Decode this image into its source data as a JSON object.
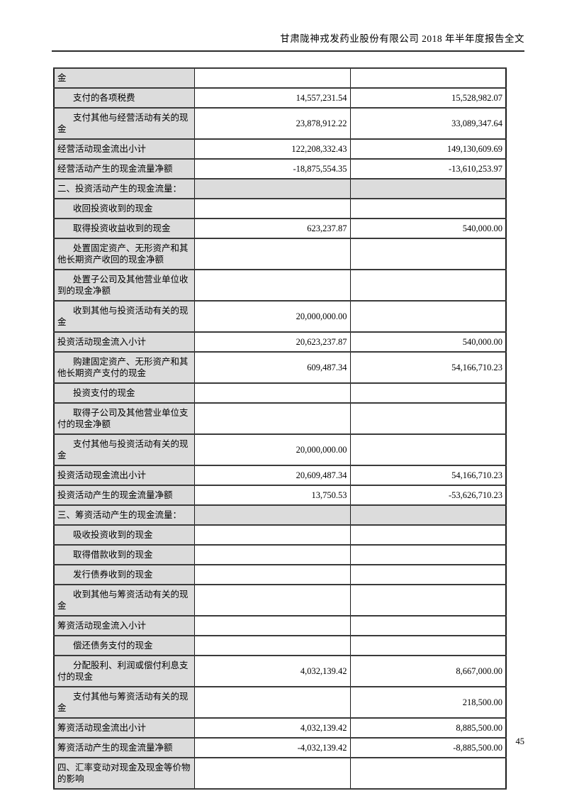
{
  "header": {
    "title": "甘肃陇神戎发药业股份有限公司 2018 年半年度报告全文"
  },
  "footer": {
    "page_number": "45"
  },
  "colors": {
    "cell_shading": "#dcdcdc",
    "border_dark": "#1c1c1c"
  },
  "table": {
    "rows": [
      {
        "label": "金",
        "indent": false,
        "section": false,
        "current": "",
        "prior": ""
      },
      {
        "label": "支付的各项税费",
        "indent": true,
        "section": false,
        "current": "14,557,231.54",
        "prior": "15,528,982.07"
      },
      {
        "label": "支付其他与经营活动有关的现金",
        "indent": true,
        "section": false,
        "current": "23,878,912.22",
        "prior": "33,089,347.64"
      },
      {
        "label": "经营活动现金流出小计",
        "indent": false,
        "section": false,
        "current": "122,208,332.43",
        "prior": "149,130,609.69"
      },
      {
        "label": "经营活动产生的现金流量净额",
        "indent": false,
        "section": false,
        "current": "-18,875,554.35",
        "prior": "-13,610,253.97"
      },
      {
        "label": "二、投资活动产生的现金流量：",
        "indent": false,
        "section": true,
        "current": "",
        "prior": ""
      },
      {
        "label": "收回投资收到的现金",
        "indent": true,
        "section": false,
        "current": "",
        "prior": ""
      },
      {
        "label": "取得投资收益收到的现金",
        "indent": true,
        "section": false,
        "current": "623,237.87",
        "prior": "540,000.00"
      },
      {
        "label": "处置固定资产、无形资产和其他长期资产收回的现金净额",
        "indent": true,
        "section": false,
        "current": "",
        "prior": ""
      },
      {
        "label": "处置子公司及其他营业单位收到的现金净额",
        "indent": true,
        "section": false,
        "current": "",
        "prior": ""
      },
      {
        "label": "收到其他与投资活动有关的现金",
        "indent": true,
        "section": false,
        "current": "20,000,000.00",
        "prior": ""
      },
      {
        "label": "投资活动现金流入小计",
        "indent": false,
        "section": false,
        "current": "20,623,237.87",
        "prior": "540,000.00"
      },
      {
        "label": "购建固定资产、无形资产和其他长期资产支付的现金",
        "indent": true,
        "section": false,
        "current": "609,487.34",
        "prior": "54,166,710.23"
      },
      {
        "label": "投资支付的现金",
        "indent": true,
        "section": false,
        "current": "",
        "prior": ""
      },
      {
        "label": "取得子公司及其他营业单位支付的现金净额",
        "indent": true,
        "section": false,
        "current": "",
        "prior": ""
      },
      {
        "label": "支付其他与投资活动有关的现金",
        "indent": true,
        "section": false,
        "current": "20,000,000.00",
        "prior": ""
      },
      {
        "label": "投资活动现金流出小计",
        "indent": false,
        "section": false,
        "current": "20,609,487.34",
        "prior": "54,166,710.23"
      },
      {
        "label": "投资活动产生的现金流量净额",
        "indent": false,
        "section": false,
        "current": "13,750.53",
        "prior": "-53,626,710.23"
      },
      {
        "label": "三、筹资活动产生的现金流量：",
        "indent": false,
        "section": true,
        "current": "",
        "prior": ""
      },
      {
        "label": "吸收投资收到的现金",
        "indent": true,
        "section": false,
        "current": "",
        "prior": ""
      },
      {
        "label": "取得借款收到的现金",
        "indent": true,
        "section": false,
        "current": "",
        "prior": ""
      },
      {
        "label": "发行债券收到的现金",
        "indent": true,
        "section": false,
        "current": "",
        "prior": ""
      },
      {
        "label": "收到其他与筹资活动有关的现金",
        "indent": true,
        "section": false,
        "current": "",
        "prior": ""
      },
      {
        "label": "筹资活动现金流入小计",
        "indent": false,
        "section": false,
        "current": "",
        "prior": ""
      },
      {
        "label": "偿还债务支付的现金",
        "indent": true,
        "section": false,
        "current": "",
        "prior": ""
      },
      {
        "label": "分配股利、利润或偿付利息支付的现金",
        "indent": true,
        "section": false,
        "current": "4,032,139.42",
        "prior": "8,667,000.00"
      },
      {
        "label": "支付其他与筹资活动有关的现金",
        "indent": true,
        "section": false,
        "current": "",
        "prior": "218,500.00"
      },
      {
        "label": "筹资活动现金流出小计",
        "indent": false,
        "section": false,
        "current": "4,032,139.42",
        "prior": "8,885,500.00"
      },
      {
        "label": "筹资活动产生的现金流量净额",
        "indent": false,
        "section": false,
        "current": "-4,032,139.42",
        "prior": "-8,885,500.00"
      },
      {
        "label": "四、汇率变动对现金及现金等价物的影响",
        "indent": false,
        "section": false,
        "current": "",
        "prior": ""
      }
    ]
  }
}
